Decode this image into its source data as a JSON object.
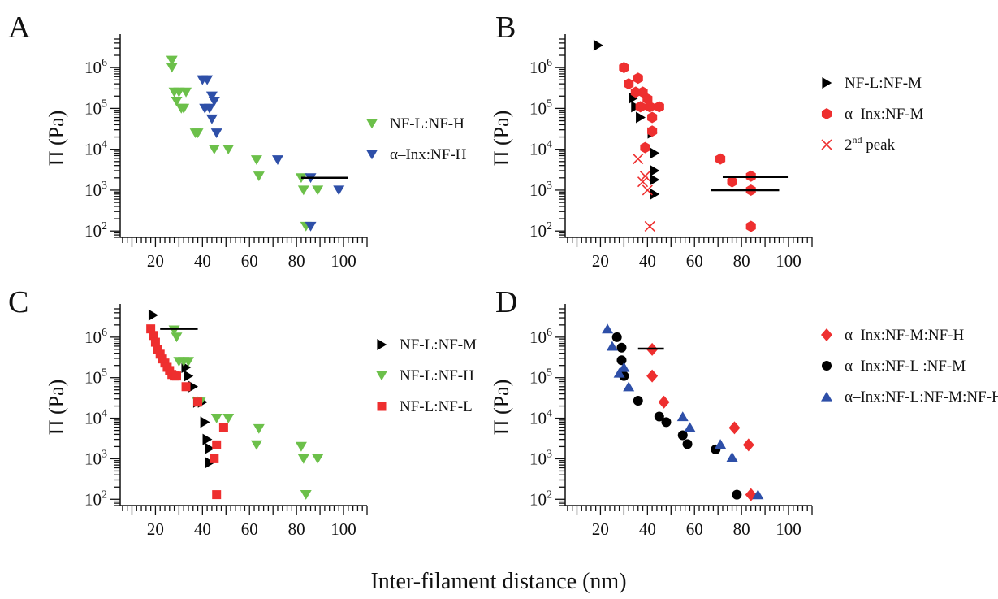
{
  "figure": {
    "xlabel": "Inter-filament distance (nm)"
  },
  "colors": {
    "green": "#6cc04a",
    "blue": "#2e4fa8",
    "red": "#ee2f2f",
    "black": "#000000"
  },
  "chart_data": [
    {
      "panel": "A",
      "type": "scatter",
      "ylabel": "Π (Pa)",
      "xlabel": "Inter-filament distance (nm)",
      "xlim": [
        5,
        110
      ],
      "ylim": [
        70,
        5000000
      ],
      "yscale": "log",
      "xticks": [
        20,
        40,
        60,
        80,
        100
      ],
      "yticks": [
        100,
        1000,
        10000,
        100000,
        1000000
      ],
      "legend_position": "right",
      "series": [
        {
          "name": "NF-L:NF-H",
          "color": "#6cc04a",
          "marker": "triangle-down",
          "x": [
            27,
            27,
            28,
            29,
            30,
            31,
            32,
            33,
            37,
            38,
            45,
            51,
            63,
            64,
            82,
            83,
            84,
            89
          ],
          "y": [
            1500000,
            1000000,
            250000,
            150000,
            250000,
            100000,
            100000,
            250000,
            25000,
            25000,
            10000,
            10000,
            5500,
            2200,
            2000,
            1000,
            130,
            1000
          ]
        },
        {
          "name": "α–Inx:NF-H",
          "color": "#2e4fa8",
          "marker": "triangle-down",
          "x": [
            40,
            41,
            42,
            43,
            44,
            44,
            45,
            46,
            72,
            86,
            86,
            98
          ],
          "y": [
            500000,
            100000,
            500000,
            100000,
            200000,
            55000,
            150000,
            25000,
            5500,
            2000,
            130,
            1000
          ]
        },
        {
          "name": "",
          "color": "#000000",
          "marker": "line",
          "x": [
            82,
            102
          ],
          "y": [
            2000,
            2000
          ]
        }
      ]
    },
    {
      "panel": "B",
      "type": "scatter",
      "ylabel": "Π (Pa)",
      "xlabel": "Inter-filament distance (nm)",
      "xlim": [
        5,
        110
      ],
      "ylim": [
        70,
        5000000
      ],
      "yscale": "log",
      "xticks": [
        20,
        40,
        60,
        80,
        100
      ],
      "yticks": [
        100,
        1000,
        10000,
        100000,
        1000000
      ],
      "legend_position": "right",
      "series": [
        {
          "name": "NF-L:NF-M",
          "color": "#000000",
          "marker": "triangle-right",
          "x": [
            19,
            34,
            35,
            37,
            42,
            43,
            43,
            43,
            43
          ],
          "y": [
            3500000,
            180000,
            110000,
            60000,
            25000,
            8000,
            3000,
            1800,
            800
          ]
        },
        {
          "name": "α–Inx:NF-M",
          "color": "#ee2f2f",
          "marker": "hexagon",
          "x": [
            30,
            32,
            35,
            36,
            37,
            38,
            39,
            40,
            41,
            42,
            42,
            45,
            71,
            76,
            84,
            84,
            84
          ],
          "y": [
            1000000,
            400000,
            250000,
            550000,
            110000,
            250000,
            11000,
            170000,
            110000,
            60000,
            28000,
            110000,
            5800,
            1600,
            2200,
            1000,
            130
          ]
        },
        {
          "name": "2nd peak",
          "color": "#ee2f2f",
          "marker": "x",
          "x": [
            36,
            38,
            39,
            40,
            41
          ],
          "y": [
            5800,
            1600,
            2200,
            1000,
            130
          ]
        },
        {
          "name": "",
          "color": "#000000",
          "marker": "line",
          "x": [
            72,
            100
          ],
          "y": [
            2100,
            2100
          ]
        },
        {
          "name": "",
          "color": "#000000",
          "marker": "line",
          "x": [
            67,
            96
          ],
          "y": [
            1000,
            1000
          ]
        }
      ]
    },
    {
      "panel": "C",
      "type": "scatter",
      "ylabel": "Π (Pa)",
      "xlabel": "Inter-filament distance (nm)",
      "xlim": [
        5,
        110
      ],
      "ylim": [
        70,
        5000000
      ],
      "yscale": "log",
      "xticks": [
        20,
        40,
        60,
        80,
        100
      ],
      "yticks": [
        100,
        1000,
        10000,
        100000,
        1000000
      ],
      "legend_position": "right",
      "series": [
        {
          "name": "NF-L:NF-M",
          "color": "#000000",
          "marker": "triangle-right",
          "x": [
            19,
            33,
            34,
            36,
            38,
            40,
            41,
            42,
            43,
            43,
            43
          ],
          "y": [
            3500000,
            180000,
            110000,
            60000,
            25000,
            25000,
            8000,
            3000,
            1800,
            800,
            800
          ]
        },
        {
          "name": "NF-L:NF-H",
          "color": "#6cc04a",
          "marker": "triangle-down",
          "x": [
            28,
            29,
            30,
            32,
            34,
            38,
            39,
            46,
            51,
            64,
            63,
            82,
            83,
            84,
            89
          ],
          "y": [
            1500000,
            1000000,
            250000,
            250000,
            250000,
            25000,
            25000,
            10000,
            10000,
            5500,
            2200,
            2000,
            1000,
            130,
            1000
          ]
        },
        {
          "name": "NF-L:NF-L",
          "color": "#ee2f2f",
          "marker": "square",
          "x": [
            18,
            19,
            20,
            21,
            22,
            23,
            24,
            25,
            26,
            27,
            28,
            29,
            33,
            38,
            45,
            46,
            46,
            49
          ],
          "y": [
            1600000,
            1100000,
            750000,
            500000,
            380000,
            290000,
            230000,
            180000,
            150000,
            120000,
            110000,
            110000,
            60000,
            25000,
            1000,
            2200,
            130,
            5800
          ]
        },
        {
          "name": "",
          "color": "#000000",
          "marker": "line",
          "x": [
            22,
            38
          ],
          "y": [
            1600000,
            1600000
          ]
        }
      ]
    },
    {
      "panel": "D",
      "type": "scatter",
      "ylabel": "Π (Pa)",
      "xlabel": "Inter-filament distance (nm)",
      "xlim": [
        5,
        110
      ],
      "ylim": [
        70,
        5000000
      ],
      "yscale": "log",
      "xticks": [
        20,
        40,
        60,
        80,
        100
      ],
      "yticks": [
        100,
        1000,
        10000,
        100000,
        1000000
      ],
      "legend_position": "right",
      "series": [
        {
          "name": "α–Inx:NF-M:NF-H",
          "color": "#ee2f2f",
          "marker": "diamond",
          "x": [
            42,
            42,
            47,
            77,
            83,
            84
          ],
          "y": [
            500000,
            110000,
            25000,
            5800,
            2200,
            130
          ]
        },
        {
          "name": "α–Inx:NF-L :NF-M",
          "color": "#000000",
          "marker": "circle",
          "x": [
            27,
            29,
            29,
            30,
            36,
            45,
            48,
            55,
            57,
            69,
            78
          ],
          "y": [
            1000000,
            550000,
            270000,
            110000,
            27000,
            11000,
            8000,
            3800,
            2300,
            1700,
            130
          ]
        },
        {
          "name": "α–Inx:NF-L:NF-M:NF-H",
          "color": "#2e4fa8",
          "marker": "triangle-up",
          "x": [
            23,
            25,
            28,
            30,
            32,
            55,
            58,
            71,
            76,
            87
          ],
          "y": [
            1600000,
            600000,
            130000,
            180000,
            60000,
            11000,
            6000,
            2300,
            1100,
            130
          ]
        },
        {
          "name": "",
          "color": "#000000",
          "marker": "line",
          "x": [
            36,
            47
          ],
          "y": [
            520000,
            520000
          ]
        }
      ]
    }
  ]
}
